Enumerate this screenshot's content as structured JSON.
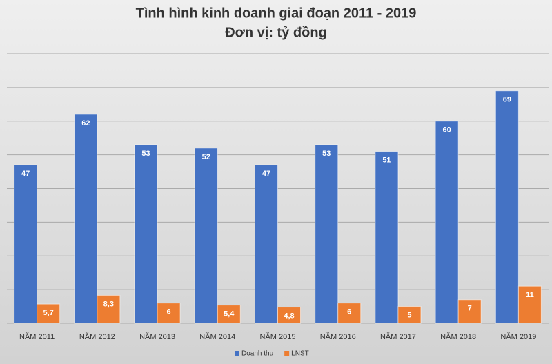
{
  "chart_data": {
    "type": "bar",
    "title": "Tình hình kinh doanh giai đoạn 2011 - 2019",
    "subtitle": "Đơn vị: tỷ đồng",
    "categories": [
      "NĂM 2011",
      "NĂM 2012",
      "NĂM 2013",
      "NĂM 2014",
      "NĂM 2015",
      "NĂM 2016",
      "NĂM 2017",
      "NĂM 2018",
      "NĂM 2019"
    ],
    "series": [
      {
        "name": "Doanh thu",
        "color": "#4472c4",
        "values": [
          47,
          62,
          53,
          52,
          47,
          53,
          51,
          60,
          69
        ]
      },
      {
        "name": "LNST",
        "color": "#ed7d31",
        "values": [
          5.7,
          8.3,
          6,
          5.4,
          4.8,
          6,
          5,
          7,
          11
        ],
        "value_labels": [
          "5,7",
          "8,3",
          "6",
          "5,4",
          "4,8",
          "6",
          "5",
          "7",
          "11"
        ]
      }
    ],
    "ylim": [
      0,
      80
    ],
    "yticks": [
      0,
      10,
      20,
      30,
      40,
      50,
      60,
      70,
      80
    ],
    "ytick_labels": false,
    "grid": true,
    "legend": "bottom"
  }
}
